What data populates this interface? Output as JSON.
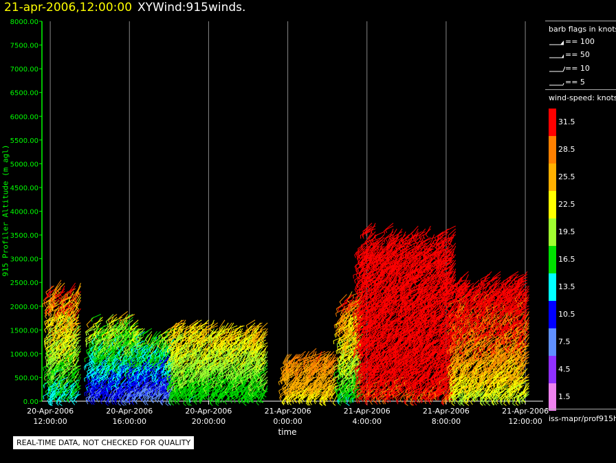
{
  "header": {
    "date": "21-apr-2006,12:00:00",
    "product": "XYWind:915winds."
  },
  "notice": "REAL-TIME DATA, NOT CHECKED FOR QUALITY",
  "colors": {
    "axis": "#00ff00",
    "title_date": "#ffff00"
  },
  "legend": {
    "flags_title": "barb flags in knots",
    "flags": [
      {
        "label": "== 100",
        "icon": "barb-triangle-icon"
      },
      {
        "label": "== 50",
        "icon": "barb-triangle-icon"
      },
      {
        "label": "== 10",
        "icon": "barb-full-icon"
      },
      {
        "label": "== 5",
        "icon": "barb-half-icon"
      }
    ],
    "speed_title": "wind-speed: knots",
    "speed_bins": [
      {
        "label": "31.5",
        "color": "#ff0000"
      },
      {
        "label": "28.5",
        "color": "#ff8000"
      },
      {
        "label": "25.5",
        "color": "#ffb000"
      },
      {
        "label": "22.5",
        "color": "#ffff00"
      },
      {
        "label": "19.5",
        "color": "#a0ff30"
      },
      {
        "label": "16.5",
        "color": "#00e000"
      },
      {
        "label": "13.5",
        "color": "#00ffff"
      },
      {
        "label": "10.5",
        "color": "#0000ff"
      },
      {
        "label": "7.5",
        "color": "#6090ff"
      },
      {
        "label": "4.5",
        "color": "#9030ff"
      },
      {
        "label": "1.5",
        "color": "#ee82ee"
      }
    ],
    "source": "iss-mapr/prof915h"
  },
  "chart_data": {
    "type": "scatter",
    "subtype": "wind-barbs",
    "xlabel": "time",
    "ylabel": "915 Profiler Altitude (m agl)",
    "ylim": [
      0,
      8000
    ],
    "xlim_hours": [
      0,
      24.5
    ],
    "y_ticks": [
      "0.00",
      "500.00",
      "1000.00",
      "1500.00",
      "2000.00",
      "2500.00",
      "3000.00",
      "3500.00",
      "4000.00",
      "4500.00",
      "5000.00",
      "5500.00",
      "6000.00",
      "6500.00",
      "7000.00",
      "7500.00",
      "8000.00"
    ],
    "x_ticks": [
      {
        "hour": 0,
        "date": "20-Apr-2006",
        "time": "12:00:00"
      },
      {
        "hour": 4,
        "date": "20-Apr-2006",
        "time": "16:00:00"
      },
      {
        "hour": 8,
        "date": "20-Apr-2006",
        "time": "20:00:00"
      },
      {
        "hour": 12,
        "date": "21-Apr-2006",
        "time": "0:00:00"
      },
      {
        "hour": 16,
        "date": "21-Apr-2006",
        "time": "4:00:00"
      },
      {
        "hour": 20,
        "date": "21-Apr-2006",
        "time": "8:00:00"
      },
      {
        "hour": 24,
        "date": "21-Apr-2006",
        "time": "12:00:00"
      }
    ],
    "grid": "vertical",
    "regions": [
      {
        "t": [
          0.1,
          1.6
        ],
        "h": [
          150,
          2600
        ],
        "speed": [
          7,
          30
        ]
      },
      {
        "t": [
          2.2,
          4.5
        ],
        "h": [
          150,
          1900
        ],
        "speed": [
          3,
          22
        ]
      },
      {
        "t": [
          4.5,
          6.3
        ],
        "h": [
          150,
          1600
        ],
        "speed": [
          2,
          20
        ]
      },
      {
        "t": [
          6.3,
          11.0
        ],
        "h": [
          150,
          1750
        ],
        "speed": [
          12,
          25
        ]
      },
      {
        "t": [
          12.0,
          14.6
        ],
        "h": [
          150,
          1150
        ],
        "speed": [
          21,
          29
        ]
      },
      {
        "t": [
          14.8,
          15.8
        ],
        "h": [
          150,
          2400
        ],
        "speed": [
          10,
          30
        ]
      },
      {
        "t": [
          15.8,
          20.5
        ],
        "h": [
          150,
          3800
        ],
        "speed": [
          26,
          40
        ]
      },
      {
        "t": [
          20.5,
          24.2
        ],
        "h": [
          150,
          2800
        ],
        "speed": [
          14,
          38
        ]
      }
    ]
  }
}
